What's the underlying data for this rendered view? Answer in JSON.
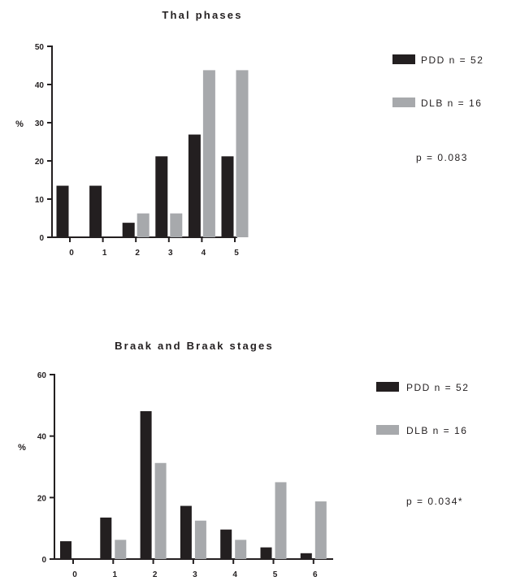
{
  "colors": {
    "PDD": "#231f20",
    "DLB": "#a7a9ac",
    "axis": "#231f20"
  },
  "chart_data": [
    {
      "type": "bar",
      "title": "Thal phases",
      "xlabel": "",
      "ylabel": "%",
      "ylim": [
        0,
        50
      ],
      "yticks": [
        0,
        10,
        20,
        30,
        40,
        50
      ],
      "categories": [
        "0",
        "1",
        "2",
        "3",
        "4",
        "5"
      ],
      "series": [
        {
          "name": "PDD n = 52",
          "values": [
            13.5,
            13.5,
            3.8,
            21.2,
            26.9,
            21.2
          ]
        },
        {
          "name": "DLB n = 16",
          "values": [
            0,
            0,
            6.25,
            6.25,
            43.75,
            43.75
          ]
        }
      ],
      "annotation": "p = 0.083",
      "legend_position": "right"
    },
    {
      "type": "bar",
      "title": "Braak and Braak stages",
      "xlabel": "",
      "ylabel": "%",
      "ylim": [
        0,
        60
      ],
      "yticks": [
        0,
        20,
        40,
        60
      ],
      "categories": [
        "0",
        "1",
        "2",
        "3",
        "4",
        "5",
        "6"
      ],
      "series": [
        {
          "name": "PDD n = 52",
          "values": [
            5.8,
            13.5,
            48.1,
            17.3,
            9.6,
            3.8,
            1.9
          ]
        },
        {
          "name": "DLB n = 16",
          "values": [
            0,
            6.25,
            31.25,
            12.5,
            6.25,
            25.0,
            18.75
          ]
        }
      ],
      "annotation": "p = 0.034*",
      "legend_position": "right"
    }
  ]
}
